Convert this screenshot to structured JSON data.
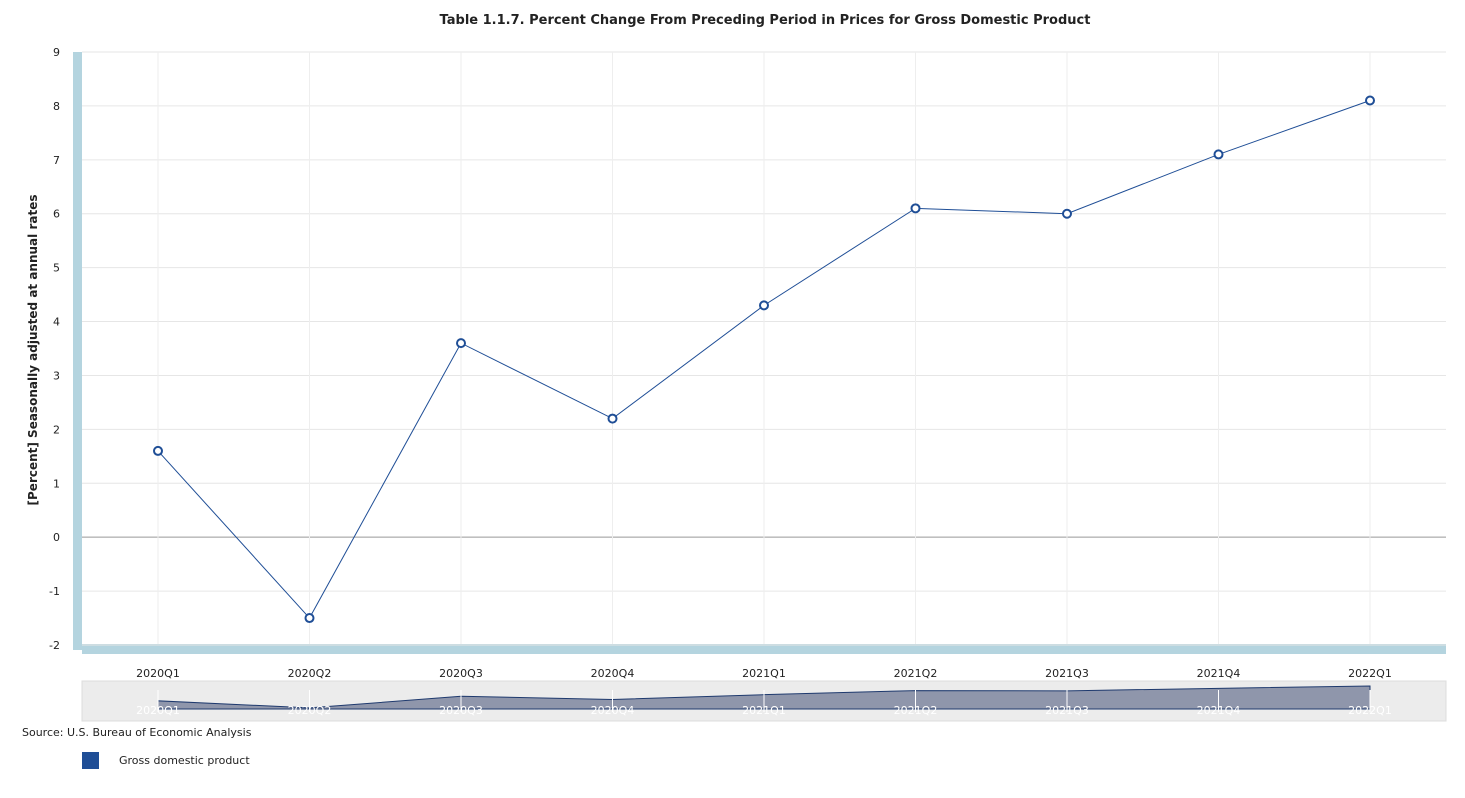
{
  "chart_data": {
    "type": "line",
    "title": "Table 1.1.7. Percent Change From Preceding Period in Prices for Gross Domestic Product",
    "ylabel": "[Percent] Seasonally adjusted at annual rates",
    "xlabel": "",
    "categories": [
      "2020Q1",
      "2020Q2",
      "2020Q3",
      "2020Q4",
      "2021Q1",
      "2021Q2",
      "2021Q3",
      "2021Q4",
      "2022Q1"
    ],
    "series": [
      {
        "name": "Gross domestic product",
        "values": [
          1.6,
          -1.5,
          3.6,
          2.2,
          4.3,
          6.1,
          6.0,
          7.1,
          8.1
        ]
      }
    ],
    "ylim": [
      -2,
      9
    ],
    "yticks": [
      -2,
      -1,
      0,
      1,
      2,
      3,
      4,
      5,
      6,
      7,
      8,
      9
    ],
    "grid": true,
    "legend_position": "bottom-left",
    "colors": {
      "line": "#1f4e96",
      "axis_bar": "#b4d4df",
      "navigator_fill": "#8f96ab",
      "navigator_bg": "#ececec"
    },
    "source": "Source: U.S. Bureau of Economic Analysis"
  }
}
